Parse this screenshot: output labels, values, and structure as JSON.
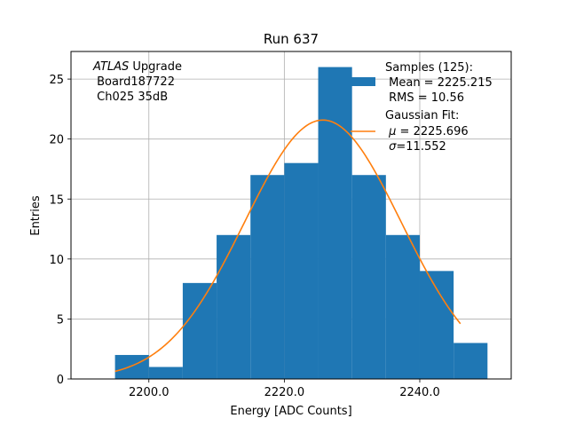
{
  "chart_data": {
    "type": "bar",
    "subtype": "histogram",
    "title": "Run 637",
    "xlabel": "Energy [ADC Counts]",
    "ylabel": "Entries",
    "xlim": [
      2188.5,
      2253.5
    ],
    "ylim": [
      0,
      27.3
    ],
    "xticks": [
      2200.0,
      2220.0,
      2240.0
    ],
    "xtick_labels": [
      "2200.0",
      "2220.0",
      "2240.0"
    ],
    "yticks": [
      0,
      5,
      10,
      15,
      20,
      25
    ],
    "ytick_labels": [
      "0",
      "5",
      "10",
      "15",
      "20",
      "25"
    ],
    "grid": true,
    "bin_edges": [
      2195,
      2200,
      2205,
      2210,
      2215,
      2220,
      2225,
      2230,
      2235,
      2240,
      2245,
      2250
    ],
    "counts": [
      2,
      1,
      8,
      12,
      17,
      18,
      26,
      17,
      12,
      9,
      3
    ],
    "bar_color": "#1f77b4",
    "fit": {
      "type": "gaussian",
      "mu": 2225.696,
      "sigma": 11.552,
      "x_range": [
        2195,
        2246
      ],
      "color": "#ff7f0e"
    },
    "annotation": {
      "line1_italic": "ATLAS",
      "line1_rest": " Upgrade",
      "line2": " Board187722",
      "line3": " Ch025 35dB"
    },
    "legend": {
      "placement": "top-right",
      "samples_line1": "Samples (125):",
      "samples_line2": " Mean = 2225.215",
      "samples_line3": " RMS = 10.56",
      "fit_line1": "Gaussian Fit:",
      "fit_mu_symbol": "μ",
      "fit_mu_rest": " = 2225.696",
      "fit_sigma_symbol": "σ",
      "fit_sigma_rest": "=11.552"
    }
  }
}
